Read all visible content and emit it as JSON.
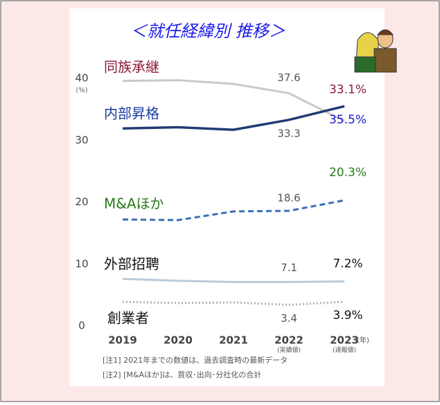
{
  "chart_data": {
    "type": "line",
    "title": "＜就任経緯別 推移＞",
    "y_unit": "(%)",
    "x_unit": "(年)",
    "categories": [
      "2019",
      "2020",
      "2021",
      "2022",
      "2023"
    ],
    "category_notes": [
      null,
      null,
      null,
      "(実績値)",
      "(速報値)"
    ],
    "ylim": [
      0,
      40
    ],
    "yticks": [
      0,
      10,
      20,
      30,
      40
    ],
    "grid": false,
    "series": [
      {
        "name": "同族承継",
        "color": "#c9c9c9",
        "style": "solid",
        "name_color": "#8b1a3a",
        "label_color": "#8b1a3a",
        "values": [
          39.6,
          39.7,
          39.1,
          37.6,
          33.1
        ],
        "value_labels": [
          null,
          null,
          null,
          "37.6",
          "33.1%"
        ]
      },
      {
        "name": "内部昇格",
        "color": "#1f3b73",
        "style": "solid",
        "name_color": "#1a3ea0",
        "label_color": "#1a1acc",
        "values": [
          31.9,
          32.1,
          31.7,
          33.3,
          35.5
        ],
        "value_labels": [
          null,
          null,
          null,
          "33.3",
          "35.5%"
        ]
      },
      {
        "name": "M&Aほか",
        "color": "#3a6fb5",
        "style": "dashed",
        "name_color": "#2a7a1a",
        "label_color": "#2a7a1a",
        "values": [
          17.2,
          17.1,
          18.5,
          18.6,
          20.3
        ],
        "value_labels": [
          null,
          null,
          null,
          "18.6",
          "20.3%"
        ]
      },
      {
        "name": "外部招聘",
        "color": "#bccad8",
        "style": "solid",
        "name_color": "#111111",
        "label_color": "#111111",
        "values": [
          7.6,
          7.3,
          7.1,
          7.1,
          7.2
        ],
        "value_labels": [
          null,
          null,
          null,
          "7.1",
          "7.2%"
        ]
      },
      {
        "name": "創業者",
        "color": "#b0b0b0",
        "style": "dotted",
        "name_color": "#111111",
        "label_color": "#111111",
        "values": [
          3.9,
          3.7,
          3.8,
          3.4,
          3.9
        ],
        "value_labels": [
          null,
          null,
          null,
          "3.4",
          "3.9%"
        ]
      }
    ],
    "notes": [
      "[注1] 2021年までの数値は、過去調査時の最新データ",
      "[注2] [M&Aほか]は、買収･出向･分社化の合計"
    ]
  }
}
